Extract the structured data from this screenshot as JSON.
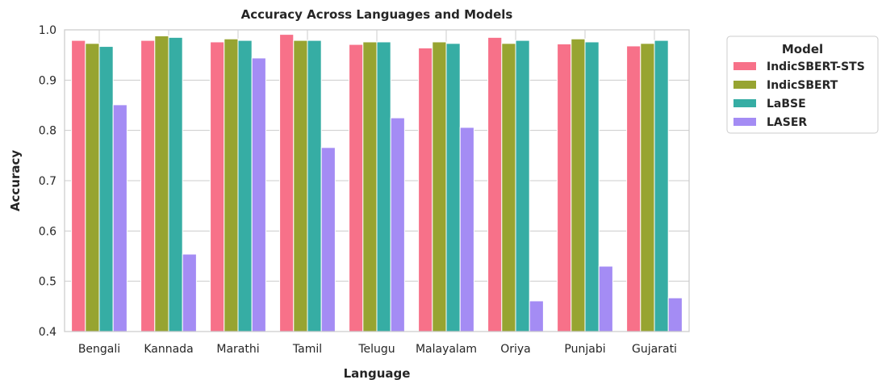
{
  "chart_data": {
    "type": "bar",
    "title": "Accuracy Across Languages and Models",
    "xlabel": "Language",
    "ylabel": "Accuracy",
    "ylim": [
      0.4,
      1.0
    ],
    "yticks": [
      "0.4",
      "0.5",
      "0.6",
      "0.7",
      "0.8",
      "0.9",
      "1.0"
    ],
    "grid": true,
    "legend_title": "Model",
    "legend_placement": "outside-top-right",
    "categories": [
      "Bengali",
      "Kannada",
      "Marathi",
      "Tamil",
      "Telugu",
      "Malayalam",
      "Oriya",
      "Punjabi",
      "Gujarati"
    ],
    "series": [
      {
        "name": "IndicSBERT-STS",
        "color": "#f77189",
        "values": [
          0.979,
          0.979,
          0.976,
          0.991,
          0.971,
          0.964,
          0.985,
          0.972,
          0.968
        ]
      },
      {
        "name": "IndicSBERT",
        "color": "#97a431",
        "values": [
          0.973,
          0.988,
          0.982,
          0.979,
          0.976,
          0.976,
          0.973,
          0.982,
          0.973
        ]
      },
      {
        "name": "LaBSE",
        "color": "#36ada4",
        "values": [
          0.967,
          0.985,
          0.979,
          0.979,
          0.976,
          0.973,
          0.979,
          0.976,
          0.979
        ]
      },
      {
        "name": "LASER",
        "color": "#a48cf4",
        "values": [
          0.851,
          0.554,
          0.944,
          0.766,
          0.825,
          0.806,
          0.461,
          0.53,
          0.467
        ]
      }
    ]
  }
}
